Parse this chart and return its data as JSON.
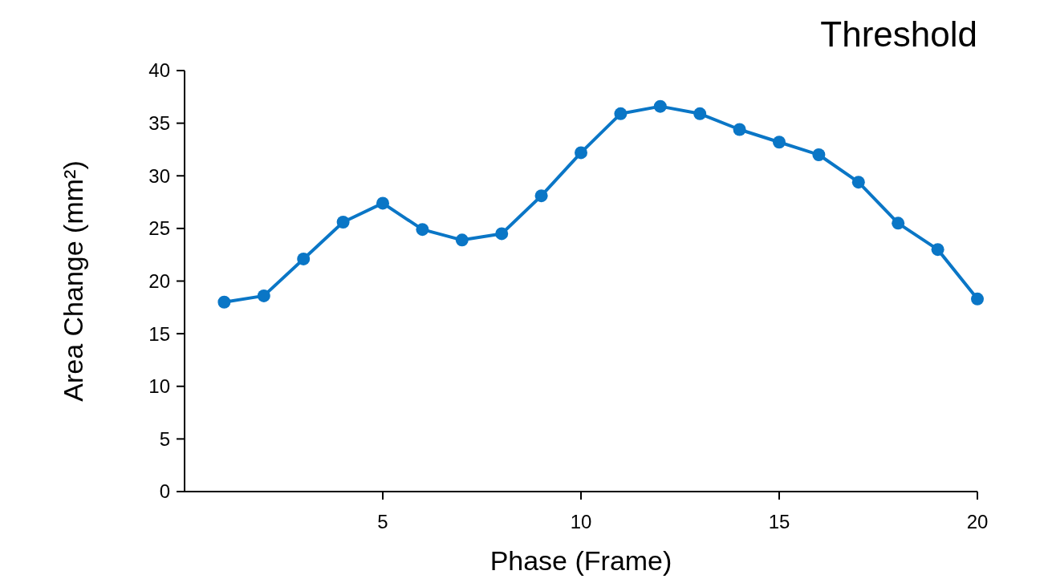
{
  "chart_data": {
    "type": "line",
    "title": "Threshold",
    "xlabel": "Phase (Frame)",
    "ylabel": "Area Change (mm²)",
    "x": [
      1,
      2,
      3,
      4,
      5,
      6,
      7,
      8,
      9,
      10,
      11,
      12,
      13,
      14,
      15,
      16,
      17,
      18,
      19,
      20
    ],
    "series": [
      {
        "color": "#0a76c6",
        "values": [
          18.0,
          18.6,
          22.1,
          25.6,
          27.4,
          24.9,
          23.9,
          24.5,
          28.1,
          32.2,
          35.9,
          36.6,
          35.9,
          34.4,
          33.2,
          32.0,
          29.4,
          25.5,
          23.0,
          18.3
        ]
      }
    ],
    "xlim": [
      0,
      20
    ],
    "xticks": [
      5,
      10,
      15,
      20
    ],
    "ylim": [
      0,
      40
    ],
    "yticks": [
      0,
      5,
      10,
      15,
      20,
      25,
      30,
      35,
      40
    ],
    "grid": false,
    "marker": "circle",
    "line_style": "solid"
  }
}
